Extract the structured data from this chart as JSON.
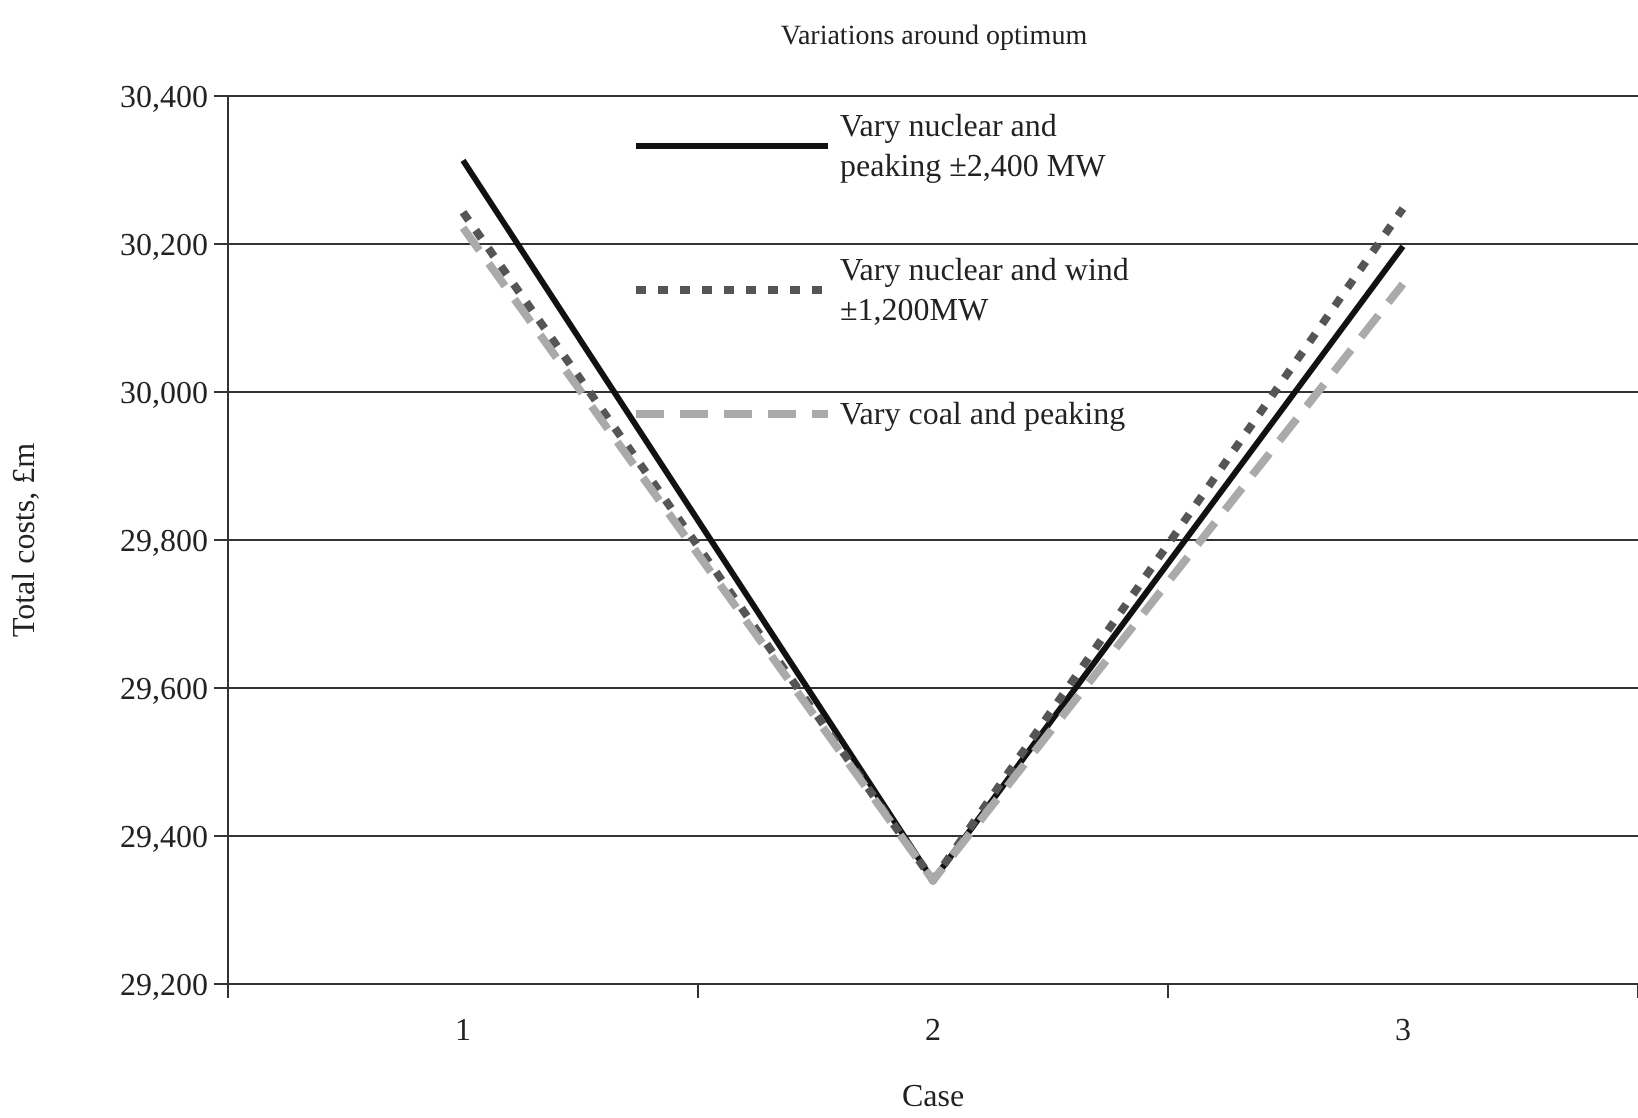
{
  "chart_data": {
    "type": "line",
    "title": "Variations around optimum",
    "xlabel": "Case",
    "ylabel": "Total costs, £m",
    "categories": [
      "1",
      "2",
      "3"
    ],
    "series": [
      {
        "name": "Vary nuclear and peaking ±2,400 MW",
        "color": "#111111",
        "line_style": "solid",
        "values": [
          30313,
          29340,
          30197
        ]
      },
      {
        "name": "Vary nuclear and wind ±1,200MW",
        "color": "#555555",
        "line_style": "dotted",
        "values": [
          30243,
          29340,
          30248
        ]
      },
      {
        "name": "Vary coal and peaking",
        "color": "#aaaaaa",
        "line_style": "dashed",
        "values": [
          30222,
          29340,
          30146
        ]
      }
    ],
    "ylim": [
      29200,
      30400
    ],
    "yticks": [
      {
        "value": 29200,
        "label": "29,200"
      },
      {
        "value": 29400,
        "label": "29,400"
      },
      {
        "value": 29600,
        "label": "29,600"
      },
      {
        "value": 29800,
        "label": "29,800"
      },
      {
        "value": 30000,
        "label": "30,000"
      },
      {
        "value": 30200,
        "label": "30,200"
      },
      {
        "value": 30400,
        "label": "30,400"
      }
    ],
    "grid": "y",
    "legend": "top",
    "marker": "none"
  }
}
